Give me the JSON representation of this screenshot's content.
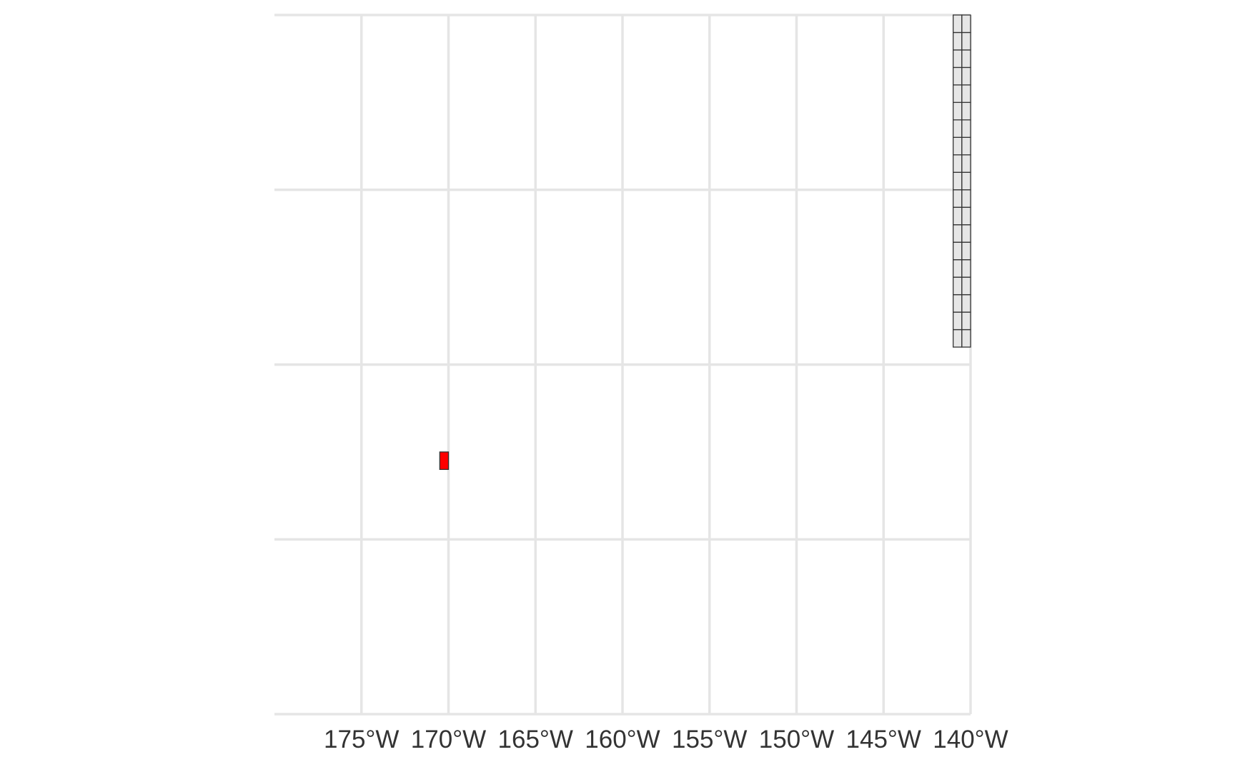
{
  "map": {
    "type": "grid map",
    "projection": "equirectangular",
    "lon_range": [
      -180,
      -140
    ],
    "lat_range": [
      0,
      20
    ],
    "lon_gridlines": [
      -175,
      -170,
      -165,
      -160,
      -155,
      -150,
      -145,
      -140
    ],
    "lat_gridlines": [
      0,
      5,
      10,
      15,
      20
    ],
    "x_tick_labels": [
      "175°W",
      "170°W",
      "165°W",
      "160°W",
      "155°W",
      "150°W",
      "145°W",
      "140°W"
    ],
    "y_tick_labels_shown": false,
    "grid": true,
    "colors": {
      "gridline": "#e5e5e5",
      "land_fill": "#e6e6e6",
      "cell_border": "#333333",
      "highlight_fill": "#ff0000",
      "tick_label": "#333333",
      "background": "#ffffff"
    },
    "land_block": {
      "lon_min": -141,
      "lon_max": -140,
      "lat_min": 10.5,
      "lat_max": 20,
      "cell_lon_step": 0.5,
      "cell_lat_step": 0.5
    },
    "highlight_cell": {
      "lon_min": -170.5,
      "lon_max": -170,
      "lat_min": 7,
      "lat_max": 7.5
    }
  }
}
